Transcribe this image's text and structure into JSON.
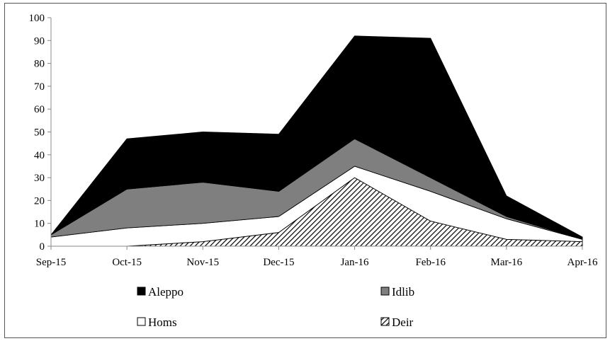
{
  "chart_data": {
    "type": "area",
    "stacked": true,
    "title": "",
    "xlabel": "",
    "ylabel": "",
    "categories": [
      "Sep-15",
      "Oct-15",
      "Nov-15",
      "Dec-15",
      "Jan-16",
      "Feb-16",
      "Mar-16",
      "Apr-16"
    ],
    "ylim": [
      0,
      100
    ],
    "yticks": [
      0,
      10,
      20,
      30,
      40,
      50,
      60,
      70,
      80,
      90,
      100
    ],
    "grid": false,
    "legend_position": "bottom",
    "series": [
      {
        "name": "Deir",
        "values": [
          0,
          0,
          2,
          6,
          30,
          11,
          3,
          2
        ],
        "color": "#ffffff",
        "pattern": "diagonal-hatch"
      },
      {
        "name": "Homs",
        "values": [
          4,
          8,
          8,
          7,
          5,
          13,
          9,
          1
        ],
        "color": "#ffffff"
      },
      {
        "name": "Idlib",
        "values": [
          1,
          17,
          18,
          11,
          12,
          6,
          1,
          0
        ],
        "color": "#7f7f7f"
      },
      {
        "name": "Aleppo",
        "values": [
          0,
          22,
          22,
          25,
          45,
          61,
          9,
          1
        ],
        "color": "#000000"
      }
    ],
    "legend_order": [
      "Aleppo",
      "Idlib",
      "Homs",
      "Deir"
    ]
  }
}
